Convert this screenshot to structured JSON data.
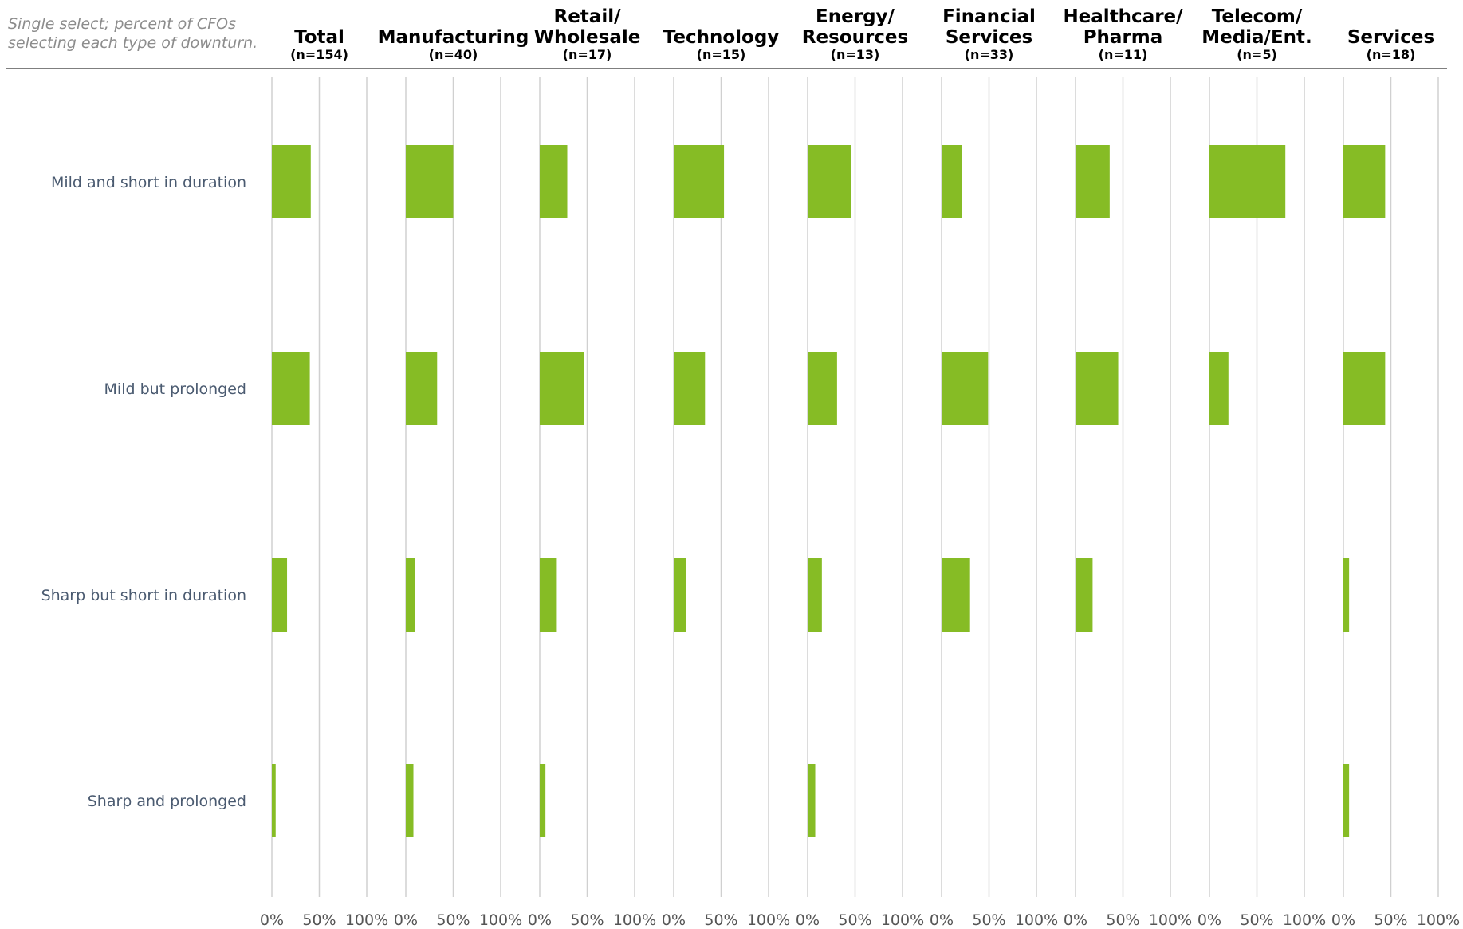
{
  "chart_data": {
    "type": "bar",
    "orientation": "horizontal",
    "note": [
      "Single select; percent of CFOs",
      "selecting each type of downturn."
    ],
    "categories": [
      "Mild and short in duration",
      "Mild but prolonged",
      "Sharp but short in duration",
      "Sharp and prolonged"
    ],
    "xlim": [
      0,
      100
    ],
    "tick_labels": [
      "0%",
      "50%",
      "100%"
    ],
    "grid": true,
    "bar_color": "#86bc25",
    "series": [
      {
        "title": [
          "Total"
        ],
        "n": "(n=154)",
        "values": [
          41,
          40,
          16,
          4
        ]
      },
      {
        "title": [
          "Manufacturing"
        ],
        "n": "(n=40)",
        "values": [
          50,
          33,
          10,
          8
        ]
      },
      {
        "title": [
          "Retail/",
          "Wholesale"
        ],
        "n": "(n=17)",
        "values": [
          29,
          47,
          18,
          6
        ]
      },
      {
        "title": [
          "Technology"
        ],
        "n": "(n=15)",
        "values": [
          53,
          33,
          13,
          0
        ]
      },
      {
        "title": [
          "Energy/",
          "Resources"
        ],
        "n": "(n=13)",
        "values": [
          46,
          31,
          15,
          8
        ]
      },
      {
        "title": [
          "Financial",
          "Services"
        ],
        "n": "(n=33)",
        "values": [
          21,
          49,
          30,
          0
        ]
      },
      {
        "title": [
          "Healthcare/",
          "Pharma"
        ],
        "n": "(n=11)",
        "values": [
          36,
          45,
          18,
          0
        ]
      },
      {
        "title": [
          "Telecom/",
          "Media/Ent."
        ],
        "n": "(n=5)",
        "values": [
          80,
          20,
          0,
          0
        ]
      },
      {
        "title": [
          "Services"
        ],
        "n": "(n=18)",
        "values": [
          44,
          44,
          6,
          6
        ]
      }
    ]
  }
}
